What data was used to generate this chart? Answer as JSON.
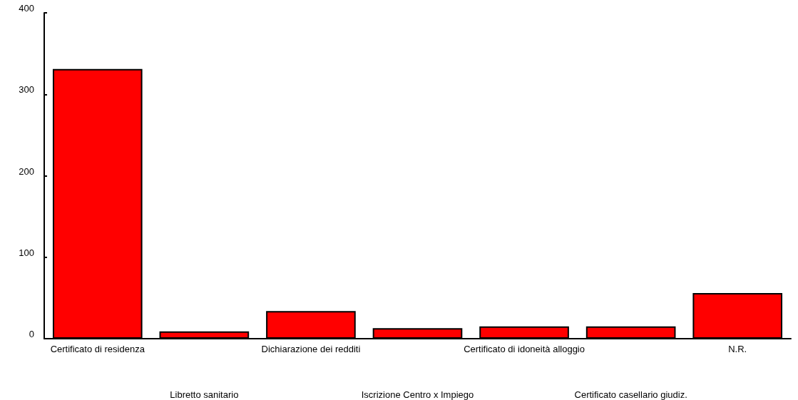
{
  "chart_data": {
    "type": "bar",
    "categories": [
      "Certificato di residenza",
      "Libretto sanitario",
      "Dichiarazione dei redditi",
      "Iscrizione Centro x Impiego",
      "Certificato di idoneità alloggio",
      "Certificato casellario giudiz.",
      "N.R."
    ],
    "values": [
      331,
      9,
      34,
      13,
      15,
      15,
      56
    ],
    "color": "#ff0000",
    "ylim": [
      0,
      400
    ],
    "yticks": [
      0,
      100,
      200,
      300,
      400
    ],
    "grid": false
  }
}
